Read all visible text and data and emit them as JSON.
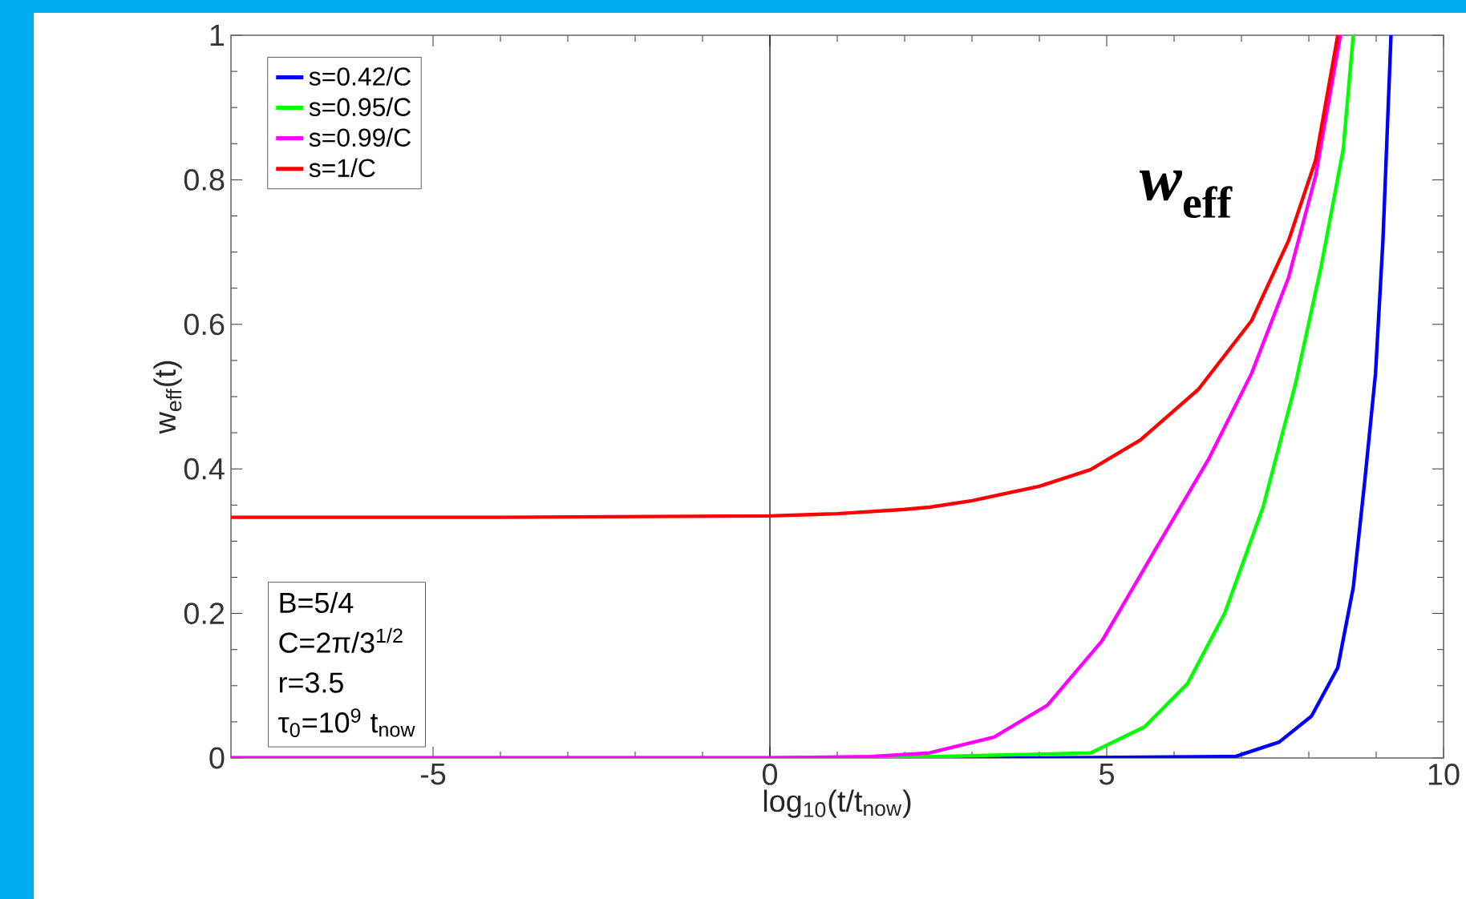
{
  "chart_data": {
    "type": "line",
    "xlabel": "log$_{10}$(t/t$_{now}$)",
    "ylabel": "w$_{eff}$(t)",
    "xlim": [
      -8,
      10
    ],
    "ylim": [
      0,
      1
    ],
    "xticks": [
      -5,
      0,
      5,
      10
    ],
    "yticks": [
      0,
      0.2,
      0.4,
      0.6,
      0.8,
      1
    ],
    "legend": "top left",
    "grid": false,
    "marker": "none",
    "line_style": "solid",
    "ref_lines": [
      {
        "axis": "x",
        "value": 0,
        "color": "#000000"
      }
    ],
    "annotations": [
      "*w*$_{eff}$",
      "B=5/4",
      "C=2π/3$^{1/2}$",
      "r=3.5",
      "τ$_{0}$=10$^{9}$ t$_{now}$"
    ],
    "series": [
      {
        "name": "s=0.42/C",
        "color": "#0000ff",
        "x": [
          -8,
          0,
          4,
          6.91,
          7.56,
          8.04,
          8.43,
          8.66,
          8.83,
          8.99,
          9.1,
          9.22
        ],
        "values": [
          0,
          0,
          0,
          0.002,
          0.022,
          0.058,
          0.125,
          0.236,
          0.383,
          0.532,
          0.716,
          1.0
        ]
      },
      {
        "name": "s=0.95/C",
        "color": "#00ff00",
        "x": [
          -8,
          0,
          2.5,
          4.76,
          5.56,
          6.2,
          6.75,
          7.32,
          7.8,
          8.18,
          8.51,
          8.66
        ],
        "values": [
          0,
          0,
          0.002,
          0.007,
          0.043,
          0.103,
          0.2,
          0.347,
          0.517,
          0.679,
          0.842,
          1.0
        ]
      },
      {
        "name": "s=0.99/C",
        "color": "#ff00ff",
        "x": [
          -8,
          0,
          1.5,
          2.37,
          3.33,
          4.12,
          4.93,
          5.72,
          6.51,
          7.15,
          7.7,
          8.1,
          8.47
        ],
        "values": [
          0,
          0,
          0.002,
          0.007,
          0.029,
          0.073,
          0.162,
          0.288,
          0.413,
          0.532,
          0.665,
          0.805,
          1.0
        ]
      },
      {
        "name": "s=1/C",
        "color": "#ff0000",
        "x": [
          -8,
          -4,
          0,
          1,
          2,
          2.37,
          3,
          4,
          4.76,
          5.5,
          6.36,
          7.15,
          7.7,
          8.1,
          8.43
        ],
        "values": [
          0.333,
          0.333,
          0.335,
          0.338,
          0.344,
          0.347,
          0.356,
          0.376,
          0.399,
          0.44,
          0.51,
          0.605,
          0.716,
          0.827,
          1.0
        ]
      }
    ]
  }
}
